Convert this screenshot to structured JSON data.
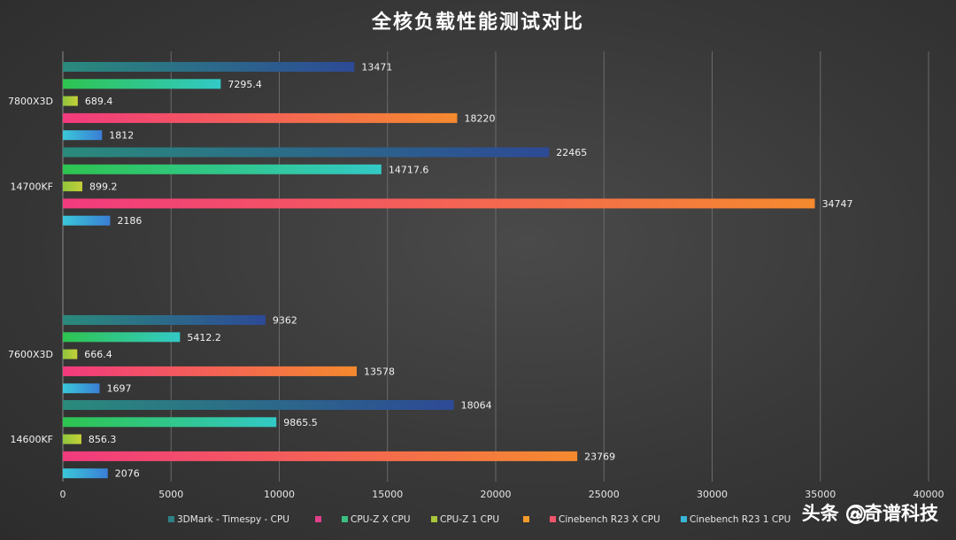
{
  "chart_data": {
    "type": "bar",
    "orientation": "horizontal",
    "title": "全核负载性能测试对比",
    "xlabel": "",
    "ylabel": "",
    "xlim": [
      0,
      40000
    ],
    "x_ticks": [
      0,
      5000,
      10000,
      15000,
      20000,
      25000,
      30000,
      35000,
      40000
    ],
    "grid": "vertical",
    "legend_position": "bottom",
    "categories": [
      "7800X3D",
      "14700KF",
      "7600X3D",
      "14600KF"
    ],
    "series": [
      {
        "name": "3DMark - Timespy - CPU",
        "color_start": "#2a8a7c",
        "color_end": "#2d4a96",
        "values": [
          13471,
          22465,
          9362,
          18064
        ],
        "labels": [
          "13471",
          "22465",
          "9362",
          "18064"
        ]
      },
      {
        "name": "CPU-Z X CPU",
        "color_start": "#2ec450",
        "color_end": "#33c9c6",
        "values": [
          7295.4,
          14717.6,
          5412.2,
          9865.5
        ],
        "labels": [
          "7295.4",
          "14717.6",
          "5412.2",
          "9865.5"
        ]
      },
      {
        "name": "CPU-Z 1 CPU",
        "color_start": "#8fc63c",
        "color_end": "#c4cf38",
        "values": [
          689.4,
          899.2,
          666.4,
          856.3
        ],
        "labels": [
          "689.4",
          "899.2",
          "666.4",
          "856.3"
        ]
      },
      {
        "name": "Cinebench R23 X CPU",
        "color_start": "#f23a7e",
        "color_end": "#f58a2e",
        "values": [
          18220,
          34747,
          13578,
          23769
        ],
        "labels": [
          "18220",
          "34747",
          "13578",
          "23769"
        ]
      },
      {
        "name": "Cinebench R23 1 CPU",
        "color_start": "#3ac8d8",
        "color_end": "#3a7ed6",
        "values": [
          1812,
          2186,
          1697,
          2076
        ],
        "labels": [
          "1812",
          "2186",
          "1697",
          "2076"
        ]
      }
    ],
    "legend_markers": [
      {
        "color": "#2f7f86",
        "series": 0
      },
      {
        "color": "#e0408a",
        "series": null
      },
      {
        "color": "#3bbf82",
        "series": 1
      },
      {
        "color": "#a8c83a",
        "series": 2
      },
      {
        "color": "#f59a2a",
        "series": null
      },
      {
        "color": "#f0566a",
        "series": 3
      },
      {
        "color": "#3ab6d6",
        "series": 4
      }
    ]
  },
  "watermark": {
    "text": "头条 @奇谱科技"
  }
}
